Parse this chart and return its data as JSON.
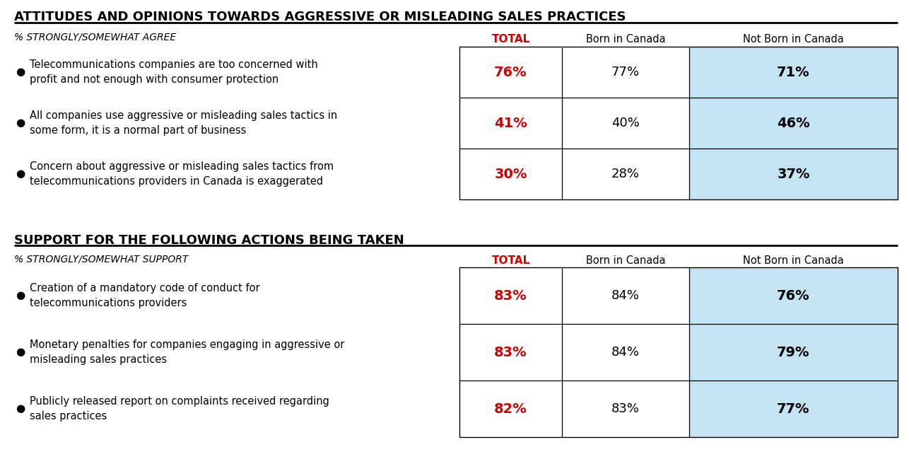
{
  "title1": "ATTITUDES AND OPINIONS TOWARDS AGGRESSIVE OR MISLEADING SALES PRACTICES",
  "title2": "SUPPORT FOR THE FOLLOWING ACTIONS BEING TAKEN",
  "subtitle1": "% STRONGLY/SOMEWHAT AGREE",
  "subtitle2": "% STRONGLY/SOMEWHAT SUPPORT",
  "col_headers": [
    "TOTAL",
    "Born in Canada",
    "Not Born in Canada"
  ],
  "section1_rows": [
    {
      "label": "Telecommunications companies are too concerned with\nprofit and not enough with consumer protection",
      "total": "76%",
      "born": "77%",
      "not_born": "71%"
    },
    {
      "label": "All companies use aggressive or misleading sales tactics in\nsome form, it is a normal part of business",
      "total": "41%",
      "born": "40%",
      "not_born": "46%"
    },
    {
      "label": "Concern about aggressive or misleading sales tactics from\ntelecommunications providers in Canada is exaggerated",
      "total": "30%",
      "born": "28%",
      "not_born": "37%"
    }
  ],
  "section2_rows": [
    {
      "label": "Creation of a mandatory code of conduct for\ntelecommunications providers",
      "total": "83%",
      "born": "84%",
      "not_born": "76%"
    },
    {
      "label": "Monetary penalties for companies engaging in aggressive or\nmisleading sales practices",
      "total": "83%",
      "born": "84%",
      "not_born": "79%"
    },
    {
      "label": "Publicly released report on complaints received regarding\nsales practices",
      "total": "82%",
      "born": "83%",
      "not_born": "77%"
    }
  ],
  "total_color": "#cc0000",
  "not_born_bg": "#c5e4f3",
  "border_color": "#000000"
}
